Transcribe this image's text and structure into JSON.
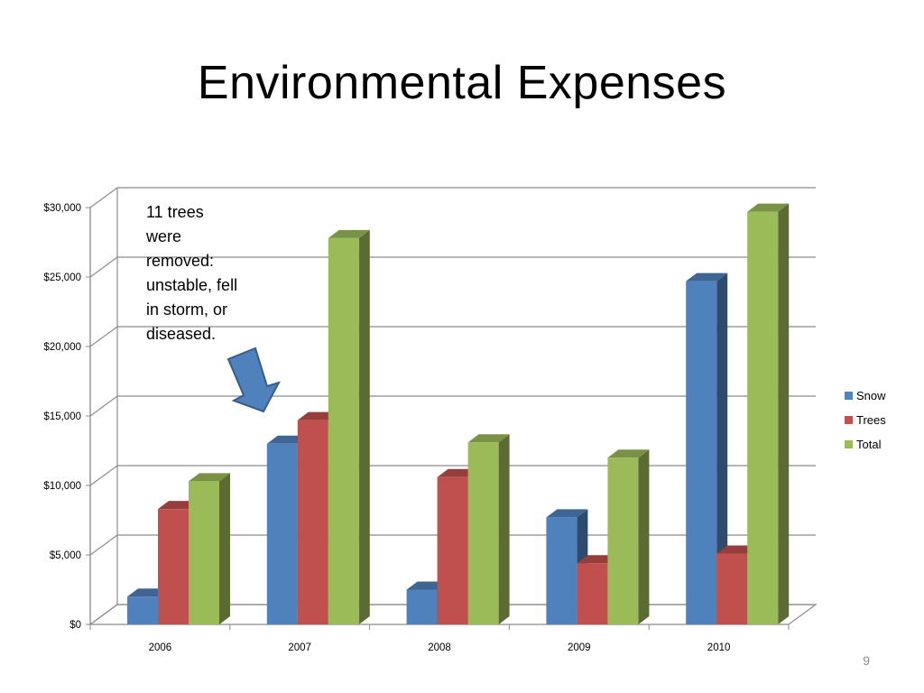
{
  "slide": {
    "title": "Environmental Expenses",
    "annotation": "11 trees\nwere\nremoved:\nunstable, fell\nin storm, or\ndiseased.",
    "page_number": "9"
  },
  "colors": {
    "snow": "#4f81bd",
    "trees": "#c0504d",
    "total": "#9bbb59"
  },
  "chart_data": {
    "type": "bar",
    "title": "",
    "xlabel": "",
    "ylabel": "",
    "categories": [
      "2006",
      "2007",
      "2008",
      "2009",
      "2010"
    ],
    "series": [
      {
        "name": "Snow",
        "values": [
          2000,
          13000,
          2500,
          7700,
          24700
        ]
      },
      {
        "name": "Trees",
        "values": [
          8300,
          14700,
          10600,
          4400,
          5100
        ]
      },
      {
        "name": "Total",
        "values": [
          10300,
          27800,
          13100,
          12000,
          29700
        ]
      }
    ],
    "ylim": [
      0,
      30000
    ],
    "yticks": [
      "$0",
      "$5,000",
      "$10,000",
      "$15,000",
      "$20,000",
      "$25,000",
      "$30,000"
    ],
    "grid": true,
    "legend": "right",
    "style": "3d-clustered"
  }
}
